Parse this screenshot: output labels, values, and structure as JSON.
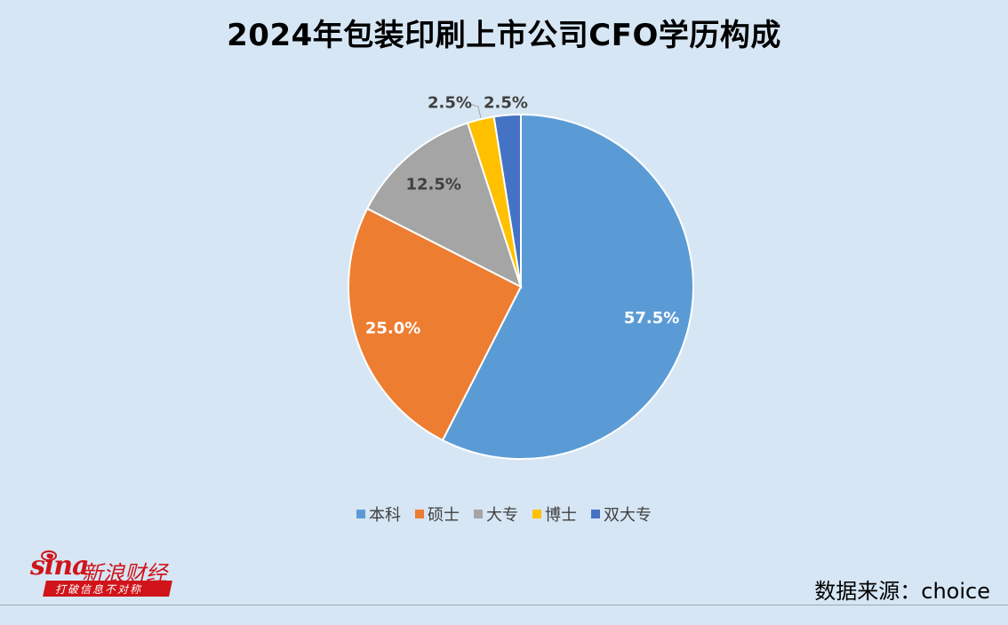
{
  "header": {
    "title": "2024年包装印刷上市公司CFO学历构成"
  },
  "chart_data": {
    "type": "pie",
    "title": "2024年包装印刷上市公司CFO学历构成",
    "categories": [
      "本科",
      "硕士",
      "大专",
      "博士",
      "双大专"
    ],
    "values": [
      57.5,
      25.0,
      12.5,
      2.5,
      2.5
    ],
    "labels": [
      "57.5%",
      "25.0%",
      "12.5%",
      "2.5%",
      "2.5%"
    ],
    "colors": [
      "#5b9bd5",
      "#ed7d31",
      "#a5a5a5",
      "#ffc000",
      "#4472c4"
    ],
    "start": "12 o'clock, clockwise",
    "legend_position": "bottom"
  },
  "logo": {
    "wordmark": "sina",
    "name": "新浪财经",
    "slogan": "打破信息不对称"
  },
  "footer": {
    "source": "数据来源：choice"
  }
}
